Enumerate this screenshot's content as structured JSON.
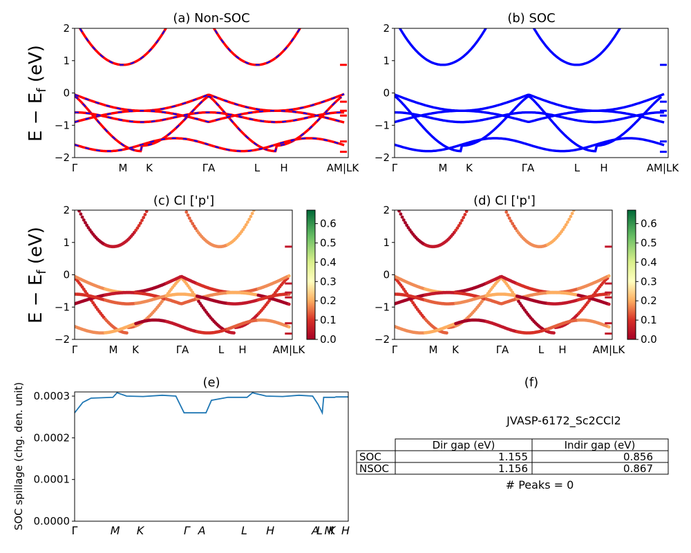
{
  "panels": {
    "a": {
      "title": "(a) Non-SOC"
    },
    "b": {
      "title": "(b) SOC"
    },
    "c": {
      "title": "(c)  Cl ['p']"
    },
    "d": {
      "title": "(d) Cl ['p']"
    },
    "e": {
      "title": "(e)"
    },
    "f": {
      "title": "(f)"
    }
  },
  "ylabel_band": "E − E",
  "ylabel_band_sub": "f",
  "ylabel_band_unit": " (eV)",
  "ylabel_spill": "SOC spillage (chg. den. unit)",
  "band_yticks": [
    "2",
    "1",
    "0",
    "−1",
    "−2"
  ],
  "kpath_labels": [
    "Γ",
    "M",
    "K",
    "ΓA",
    "L",
    "H",
    "AM|LK"
  ],
  "kpath_labels_ab_right": "M|LK",
  "kpath_labels_ab_right_b": "M|LK",
  "kpath_labels_cd_right": "M|LK",
  "spill_xticks": [
    "Γ",
    "M",
    "K",
    "Γ",
    "A",
    "L",
    "H",
    "A",
    "L",
    "M",
    "K",
    "H"
  ],
  "spill_yticks": [
    "0.0003",
    "0.0002",
    "0.0001",
    "0.0000"
  ],
  "colorbar_ticks": [
    "0.6",
    "0.5",
    "0.4",
    "0.3",
    "0.2",
    "0.1",
    "0.0"
  ],
  "material_id": "JVASP-6172_Sc2CCl2",
  "table": {
    "headers": [
      "Dir gap (eV)",
      "Indir gap (eV)"
    ],
    "rows": [
      {
        "label": "SOC",
        "dir": "1.155",
        "indir": "0.856"
      },
      {
        "label": "NSOC",
        "dir": "1.156",
        "indir": "0.867"
      }
    ]
  },
  "peaks_text": "# Peaks = 0",
  "colors": {
    "nonsoc": "#ff0000",
    "soc": "#0000ff",
    "spill": "#1f77b4"
  },
  "chart_data": [
    {
      "type": "line",
      "panel": "a",
      "title": "(a) Non-SOC",
      "ylim": [
        -2,
        2
      ],
      "x_ticks": [
        "Γ",
        "M",
        "K",
        "Γ",
        "A",
        "L",
        "H",
        "A",
        "M",
        "L",
        "K"
      ],
      "series": [
        {
          "values": [
            [
              0,
              -0.9
            ],
            [
              0.5,
              -0.8
            ],
            [
              1,
              -0.7
            ],
            [
              1.5,
              -0.6
            ],
            [
              2,
              -0.75
            ],
            [
              2.5,
              -0.88
            ],
            [
              3,
              -0.85
            ],
            [
              4,
              -0.7
            ],
            [
              4.5,
              -0.6
            ],
            [
              5,
              -0.75
            ],
            [
              5.5,
              -0.88
            ]
          ]
        },
        {
          "values": [
            [
              0,
              0
            ],
            [
              0.5,
              -0.2
            ],
            [
              1,
              -1.8
            ],
            [
              1.5,
              -1.55
            ],
            [
              2,
              -0.6
            ],
            [
              2.5,
              0
            ],
            [
              3,
              -0.2
            ],
            [
              4,
              -1.8
            ],
            [
              4.5,
              -1.55
            ],
            [
              5,
              -0.6
            ],
            [
              5.5,
              0
            ]
          ]
        }
      ],
      "conduction_min_eV": 0.87
    },
    {
      "type": "line",
      "panel": "b",
      "title": "(b) SOC",
      "ylim": [
        -2,
        2
      ],
      "conduction_min_eV": 0.856
    },
    {
      "type": "scatter",
      "panel": "c",
      "title": "(c)  Cl ['p']",
      "ylim": [
        -2,
        2
      ],
      "colorbar": {
        "min": 0.0,
        "max": 0.65,
        "cmap": "RdYlGn"
      }
    },
    {
      "type": "scatter",
      "panel": "d",
      "title": "(d) Cl ['p']",
      "ylim": [
        -2,
        2
      ],
      "colorbar": {
        "min": 0.0,
        "max": 0.65,
        "cmap": "RdYlGn"
      }
    },
    {
      "type": "line",
      "panel": "e",
      "title": "(e)",
      "ylabel": "SOC spillage (chg. den. unit)",
      "ylim": [
        0,
        0.00031
      ],
      "x_ticks": [
        "Γ",
        "M",
        "K",
        "Γ",
        "A",
        "L",
        "H",
        "A",
        "L",
        "M",
        "K",
        "H"
      ]
    }
  ]
}
